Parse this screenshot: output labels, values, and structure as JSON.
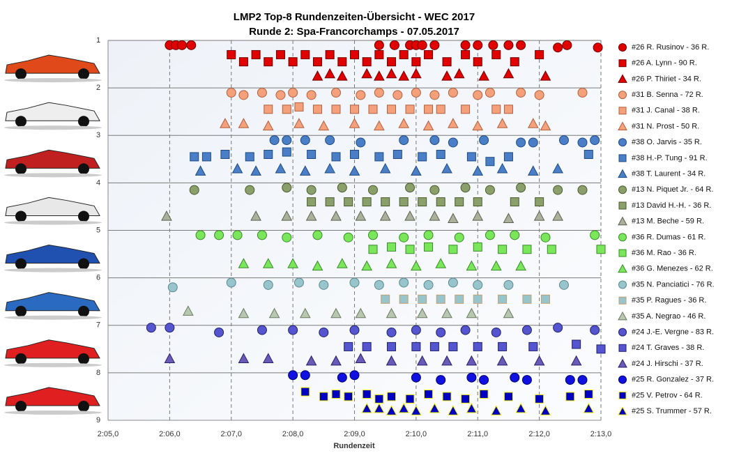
{
  "chart_data": {
    "type": "scatter",
    "title": "LMP2  Top-8 Rundenzeiten-Übersicht  - WEC 2017",
    "subtitle": "Runde  2: Spa-Francorchamps  - 07.05.2017",
    "xlabel": "Rundenzeit",
    "xlim": [
      125,
      133
    ],
    "ylim": [
      1,
      9
    ],
    "y_inverted": true,
    "grid": true,
    "legend": "right",
    "xticks": [
      {
        "value": 125,
        "label": "2:05,0"
      },
      {
        "value": 126,
        "label": "2:06,0"
      },
      {
        "value": 127,
        "label": "2:07,0"
      },
      {
        "value": 128,
        "label": "2:08,0"
      },
      {
        "value": 129,
        "label": "2:09,0"
      },
      {
        "value": 130,
        "label": "2:10,0"
      },
      {
        "value": 131,
        "label": "2:11,0"
      },
      {
        "value": 132,
        "label": "2:12,0"
      },
      {
        "value": 133,
        "label": "2:13,0"
      }
    ],
    "yticks": [
      1,
      2,
      3,
      4,
      5,
      6,
      7,
      8,
      9
    ],
    "series": [
      {
        "name": "#26 R. Rusinov - 36 R.",
        "color": "#e00000",
        "edgecolor": "#700000",
        "marker": "circle",
        "x": [
          126.0,
          126.1,
          126.2,
          126.35,
          129.4,
          129.65,
          129.9,
          130.0,
          130.1,
          130.3,
          130.8,
          131.0,
          131.25,
          131.5,
          131.7,
          132.3,
          132.45,
          132.95
        ],
        "values": [
          1.1,
          1.1,
          1.1,
          1.1,
          1.1,
          1.1,
          1.1,
          1.1,
          1.1,
          1.1,
          1.1,
          1.1,
          1.1,
          1.1,
          1.1,
          1.15,
          1.1,
          1.15
        ]
      },
      {
        "name": "#26 A. Lynn - 90 R.",
        "color": "#e00000",
        "edgecolor": "#700000",
        "marker": "square",
        "x": [
          127.0,
          127.2,
          127.4,
          127.6,
          127.8,
          128.0,
          128.2,
          128.4,
          128.6,
          128.8,
          129.0,
          129.2,
          129.4,
          129.6,
          129.8,
          130.0,
          130.2,
          130.5,
          130.8,
          131.0,
          131.3,
          131.6,
          132.0
        ],
        "values": [
          1.3,
          1.45,
          1.3,
          1.45,
          1.3,
          1.45,
          1.3,
          1.45,
          1.3,
          1.45,
          1.3,
          1.45,
          1.3,
          1.45,
          1.3,
          1.45,
          1.3,
          1.45,
          1.3,
          1.45,
          1.3,
          1.45,
          1.3
        ]
      },
      {
        "name": "#26 P. Thiriet - 34 R.",
        "color": "#e00000",
        "edgecolor": "#700000",
        "marker": "triangle",
        "x": [
          128.4,
          128.6,
          128.8,
          129.2,
          129.4,
          129.6,
          129.8,
          130.0,
          130.5,
          130.7,
          131.1,
          131.5,
          132.1
        ],
        "values": [
          1.75,
          1.7,
          1.75,
          1.7,
          1.75,
          1.7,
          1.75,
          1.7,
          1.75,
          1.7,
          1.75,
          1.7,
          1.75
        ]
      },
      {
        "name": "#31 B. Senna - 72 R.",
        "color": "#f4a07a",
        "edgecolor": "#b06040",
        "marker": "circle",
        "x": [
          127.0,
          127.2,
          127.5,
          127.8,
          128.0,
          128.3,
          128.7,
          129.1,
          129.4,
          129.7,
          130.0,
          130.3,
          130.6,
          131.0,
          131.2,
          131.7,
          132.0,
          132.7
        ],
        "values": [
          2.1,
          2.15,
          2.1,
          2.15,
          2.1,
          2.15,
          2.1,
          2.15,
          2.1,
          2.15,
          2.1,
          2.15,
          2.1,
          2.15,
          2.1,
          2.1,
          2.15,
          2.1
        ]
      },
      {
        "name": "#31 J. Canal - 38 R.",
        "color": "#f4a07a",
        "edgecolor": "#b06040",
        "marker": "square",
        "x": [
          127.6,
          127.9,
          128.1,
          128.4,
          128.7,
          129.0,
          129.3,
          129.6,
          129.9,
          130.2,
          130.4,
          130.8,
          131.3,
          131.5
        ],
        "values": [
          2.45,
          2.45,
          2.4,
          2.45,
          2.45,
          2.45,
          2.45,
          2.45,
          2.45,
          2.45,
          2.45,
          2.45,
          2.45,
          2.45
        ]
      },
      {
        "name": "#31 N. Prost - 50 R.",
        "color": "#f4a07a",
        "edgecolor": "#b06040",
        "marker": "triangle",
        "x": [
          126.9,
          127.2,
          127.6,
          128.1,
          128.5,
          129.0,
          129.4,
          129.8,
          130.2,
          130.6,
          131.0,
          131.4,
          131.9,
          132.1
        ],
        "values": [
          2.75,
          2.75,
          2.8,
          2.75,
          2.8,
          2.75,
          2.8,
          2.75,
          2.8,
          2.75,
          2.8,
          2.75,
          2.75,
          2.8
        ]
      },
      {
        "name": "#38 O. Jarvis - 35 R.",
        "color": "#4a7fc8",
        "edgecolor": "#1f4a80",
        "marker": "circle",
        "x": [
          127.7,
          127.9,
          128.2,
          128.6,
          129.1,
          129.8,
          130.3,
          130.6,
          131.1,
          131.7,
          131.9,
          132.4,
          132.7,
          132.9
        ],
        "values": [
          3.1,
          3.1,
          3.1,
          3.1,
          3.15,
          3.1,
          3.1,
          3.15,
          3.1,
          3.15,
          3.15,
          3.1,
          3.15,
          3.1
        ]
      },
      {
        "name": "#38 H.-P. Tung - 91 R.",
        "color": "#4a7fc8",
        "edgecolor": "#1f4a80",
        "marker": "square",
        "x": [
          126.4,
          126.6,
          126.9,
          127.3,
          127.6,
          127.9,
          128.3,
          128.7,
          129.0,
          129.4,
          129.7,
          130.1,
          130.4,
          130.9,
          131.2,
          131.5,
          132.8
        ],
        "values": [
          3.45,
          3.45,
          3.4,
          3.45,
          3.4,
          3.35,
          3.4,
          3.45,
          3.4,
          3.45,
          3.4,
          3.45,
          3.4,
          3.45,
          3.55,
          3.45,
          3.4
        ]
      },
      {
        "name": "#38 T. Laurent - 34 R.",
        "color": "#4a7fc8",
        "edgecolor": "#1f4a80",
        "marker": "triangle",
        "x": [
          126.5,
          127.1,
          127.4,
          127.8,
          128.2,
          128.6,
          129.0,
          129.5,
          130.0,
          130.5,
          131.0,
          131.4,
          131.9,
          132.3
        ],
        "values": [
          3.75,
          3.7,
          3.75,
          3.7,
          3.75,
          3.7,
          3.75,
          3.7,
          3.75,
          3.7,
          3.75,
          3.7,
          3.75,
          3.7
        ]
      },
      {
        "name": "#13 N. Piquet Jr. - 64 R.",
        "color": "#8a9f6a",
        "edgecolor": "#4a5a30",
        "marker": "circle",
        "x": [
          126.4,
          127.3,
          127.9,
          128.3,
          128.8,
          129.3,
          129.9,
          130.3,
          130.8,
          131.2,
          131.7,
          132.3,
          132.7
        ],
        "values": [
          4.15,
          4.15,
          4.1,
          4.15,
          4.1,
          4.15,
          4.1,
          4.15,
          4.1,
          4.15,
          4.1,
          4.15,
          4.15
        ]
      },
      {
        "name": "#13 David H.-H. - 36 R.",
        "color": "#8a9f6a",
        "edgecolor": "#4a5a30",
        "marker": "square",
        "x": [
          128.3,
          128.6,
          128.9,
          129.2,
          129.5,
          129.8,
          130.1,
          130.4,
          130.7,
          131.0,
          131.6,
          132.0
        ],
        "values": [
          4.4,
          4.4,
          4.4,
          4.4,
          4.4,
          4.4,
          4.4,
          4.4,
          4.4,
          4.4,
          4.4,
          4.4
        ]
      },
      {
        "name": "#13 M. Beche - 59 R.",
        "color": "#aab09a",
        "edgecolor": "#5a6050",
        "marker": "triangle",
        "x": [
          125.95,
          127.4,
          127.9,
          128.3,
          128.7,
          129.1,
          129.5,
          129.9,
          130.3,
          130.6,
          131.0,
          131.5,
          132.0,
          132.3
        ],
        "values": [
          4.7,
          4.7,
          4.7,
          4.7,
          4.7,
          4.7,
          4.7,
          4.7,
          4.7,
          4.75,
          4.7,
          4.75,
          4.7,
          4.7
        ]
      },
      {
        "name": "#36 R. Dumas - 61 R.",
        "color": "#7ae65a",
        "edgecolor": "#3a8a2a",
        "marker": "circle",
        "x": [
          126.5,
          126.8,
          127.1,
          127.5,
          127.9,
          128.4,
          128.9,
          129.3,
          129.8,
          130.2,
          130.7,
          131.2,
          131.6,
          132.1,
          132.9
        ],
        "values": [
          5.1,
          5.1,
          5.1,
          5.1,
          5.15,
          5.1,
          5.15,
          5.1,
          5.15,
          5.1,
          5.15,
          5.1,
          5.1,
          5.15,
          5.1
        ]
      },
      {
        "name": "#36 M. Rao - 36 R.",
        "color": "#7ae65a",
        "edgecolor": "#3a8a2a",
        "marker": "square",
        "x": [
          129.3,
          129.6,
          129.9,
          130.2,
          130.6,
          131.0,
          131.4,
          131.8,
          132.2,
          133.0
        ],
        "values": [
          5.4,
          5.35,
          5.4,
          5.35,
          5.4,
          5.35,
          5.4,
          5.4,
          5.4,
          5.4
        ]
      },
      {
        "name": "#36 G. Menezes - 62 R.",
        "color": "#7ae65a",
        "edgecolor": "#3a8a2a",
        "marker": "triangle",
        "x": [
          127.2,
          127.6,
          128.0,
          128.4,
          128.8,
          129.2,
          129.6,
          130.0,
          130.4,
          130.9,
          131.3,
          131.7
        ],
        "values": [
          5.7,
          5.7,
          5.7,
          5.75,
          5.7,
          5.75,
          5.7,
          5.75,
          5.7,
          5.75,
          5.75,
          5.75
        ]
      },
      {
        "name": "#35 N. Panciatici - 76 R.",
        "color": "#98c4cc",
        "edgecolor": "#5a8a90",
        "marker": "circle",
        "x": [
          126.05,
          127.0,
          127.6,
          128.1,
          128.5,
          129.0,
          129.4,
          129.8,
          130.2,
          130.6,
          131.0,
          131.5,
          132.4
        ],
        "values": [
          6.2,
          6.1,
          6.15,
          6.1,
          6.15,
          6.1,
          6.15,
          6.1,
          6.15,
          6.1,
          6.15,
          6.15,
          6.15
        ]
      },
      {
        "name": "#35 P. Ragues - 36 R.",
        "color": "#98c4cc",
        "edgecolor": "#c0a070",
        "marker": "square",
        "x": [
          129.5,
          129.8,
          130.1,
          130.4,
          130.7,
          131.0,
          131.4,
          131.8,
          132.1
        ],
        "values": [
          6.45,
          6.45,
          6.45,
          6.45,
          6.45,
          6.45,
          6.45,
          6.45,
          6.45
        ]
      },
      {
        "name": "#35 A. Negrao - 46 R.",
        "color": "#b8c8b0",
        "edgecolor": "#6a7a60",
        "marker": "triangle",
        "x": [
          126.3,
          127.2,
          127.7,
          128.2,
          128.7,
          129.1,
          129.6,
          130.1,
          130.5,
          130.9,
          131.5
        ],
        "values": [
          6.7,
          6.75,
          6.75,
          6.75,
          6.75,
          6.75,
          6.75,
          6.75,
          6.75,
          6.75,
          6.75
        ]
      },
      {
        "name": "#24 J.-E. Vergne - 83 R.",
        "color": "#5555d0",
        "edgecolor": "#20206a",
        "marker": "circle",
        "x": [
          125.7,
          126.0,
          126.8,
          127.5,
          128.0,
          128.5,
          129.0,
          129.6,
          130.0,
          130.4,
          130.8,
          131.3,
          131.8,
          132.3,
          132.9
        ],
        "values": [
          7.05,
          7.05,
          7.15,
          7.1,
          7.1,
          7.15,
          7.1,
          7.15,
          7.1,
          7.15,
          7.1,
          7.15,
          7.1,
          7.05,
          7.1
        ]
      },
      {
        "name": "#24 T. Graves - 38 R.",
        "color": "#5555d0",
        "edgecolor": "#20206a",
        "marker": "square",
        "x": [
          128.9,
          129.2,
          129.6,
          130.0,
          130.3,
          130.6,
          131.0,
          131.4,
          131.9,
          132.6,
          133.0
        ],
        "values": [
          7.45,
          7.45,
          7.45,
          7.45,
          7.45,
          7.45,
          7.45,
          7.45,
          7.45,
          7.4,
          7.5
        ]
      },
      {
        "name": "#24 J. Hirschi - 37 R.",
        "color": "#6a5ab8",
        "edgecolor": "#2a206a",
        "marker": "triangle",
        "x": [
          126.0,
          127.2,
          127.6,
          128.3,
          128.7,
          129.1,
          129.6,
          130.1,
          130.5,
          130.9,
          131.4,
          132.0,
          132.6
        ],
        "values": [
          7.7,
          7.7,
          7.7,
          7.75,
          7.75,
          7.7,
          7.75,
          7.75,
          7.75,
          7.75,
          7.75,
          7.75,
          7.75
        ]
      },
      {
        "name": "#25 R. Gonzalez - 37 R.",
        "color": "#1010e0",
        "edgecolor": "#00006a",
        "marker": "circle",
        "x": [
          128.0,
          128.2,
          128.8,
          129.0,
          130.0,
          130.4,
          130.9,
          131.1,
          131.6,
          131.8,
          132.5,
          132.7
        ],
        "values": [
          8.05,
          8.05,
          8.1,
          8.05,
          8.1,
          8.15,
          8.1,
          8.15,
          8.1,
          8.15,
          8.15,
          8.15
        ]
      },
      {
        "name": "#25 V. Petrov - 64 R.",
        "color": "#0000c0",
        "edgecolor": "#f0f000",
        "marker": "square",
        "x": [
          128.2,
          128.5,
          128.7,
          128.9,
          129.2,
          129.4,
          129.6,
          129.9,
          130.2,
          130.5,
          130.8,
          131.1,
          131.5,
          132.0,
          132.5,
          132.8
        ],
        "values": [
          8.4,
          8.5,
          8.45,
          8.5,
          8.45,
          8.55,
          8.5,
          8.55,
          8.45,
          8.5,
          8.55,
          8.45,
          8.5,
          8.55,
          8.5,
          8.45
        ]
      },
      {
        "name": "#25 S. Trummer - 57 R.",
        "color": "#0000c0",
        "edgecolor": "#f0f000",
        "marker": "triangle",
        "x": [
          129.2,
          129.4,
          129.6,
          129.8,
          130.0,
          130.3,
          130.6,
          130.9,
          131.3,
          131.7,
          132.1,
          132.8
        ],
        "values": [
          8.75,
          8.75,
          8.8,
          8.75,
          8.8,
          8.75,
          8.8,
          8.75,
          8.8,
          8.75,
          8.8,
          8.75
        ]
      }
    ]
  }
}
